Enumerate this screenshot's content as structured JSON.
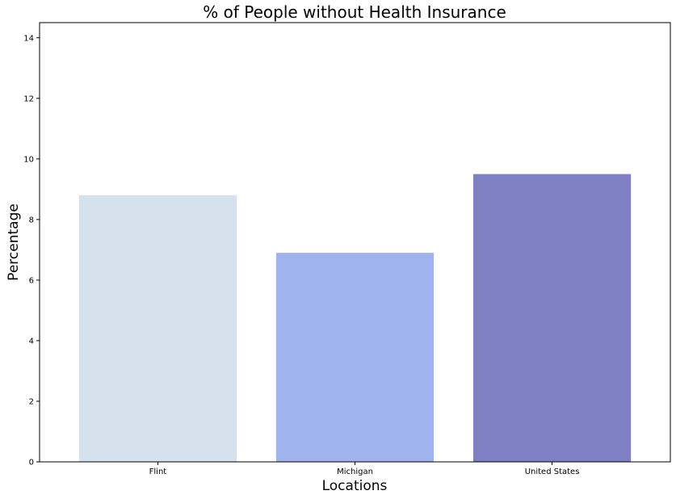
{
  "chart_data": {
    "type": "bar",
    "title": "% of People without Health Insurance",
    "xlabel": "Locations",
    "ylabel": "Percentage",
    "categories": [
      "Flint",
      "Michigan",
      "United States"
    ],
    "values": [
      8.8,
      6.9,
      9.5
    ],
    "colors": [
      "#d6e1ee",
      "#a0b3ec",
      "#7f80c3"
    ],
    "ylim": [
      0,
      14.5
    ],
    "yticks": [
      "0",
      "2",
      "4",
      "6",
      "8",
      "10",
      "12",
      "14"
    ],
    "grid": false,
    "legend": "none"
  }
}
